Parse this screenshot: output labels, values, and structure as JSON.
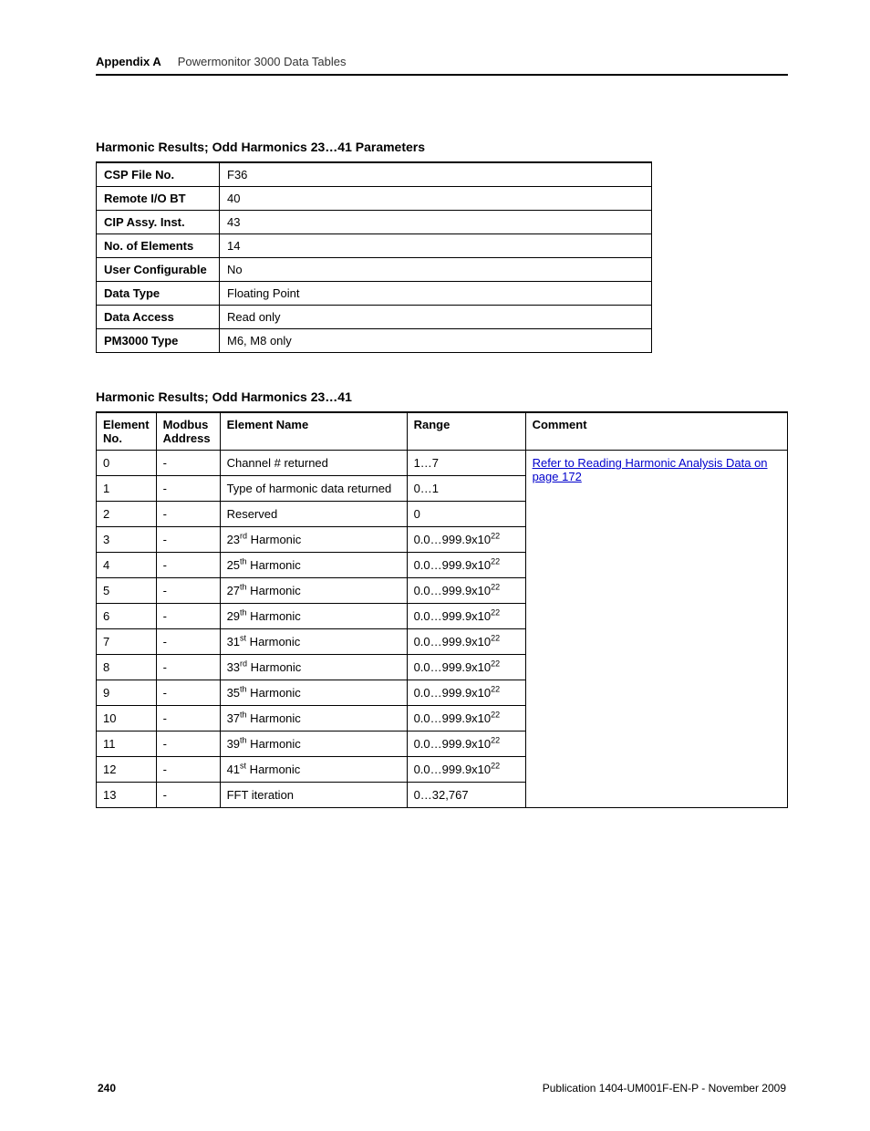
{
  "header": {
    "appendix_label": "Appendix A",
    "appendix_title": "Powermonitor 3000 Data Tables"
  },
  "params_table": {
    "title": "Harmonic Results; Odd Harmonics 23…41 Parameters",
    "rows": [
      {
        "label": "CSP File No.",
        "value": "F36"
      },
      {
        "label": "Remote I/O BT",
        "value": "40"
      },
      {
        "label": "CIP Assy. Inst.",
        "value": "43"
      },
      {
        "label": "No. of Elements",
        "value": "14"
      },
      {
        "label": "User Configurable",
        "value": "No"
      },
      {
        "label": "Data Type",
        "value": "Floating Point"
      },
      {
        "label": "Data Access",
        "value": "Read only"
      },
      {
        "label": "PM3000 Type",
        "value": "M6, M8 only"
      }
    ]
  },
  "elements_table": {
    "title": "Harmonic Results; Odd Harmonics 23…41",
    "headers": {
      "el_no": "Element No.",
      "modbus": "Modbus Address",
      "name": "Element Name",
      "range": "Range",
      "comment": "Comment"
    },
    "comment_link_text": "Refer to Reading Harmonic Analysis Data on page 172",
    "rows": [
      {
        "no": "0",
        "modbus": "-",
        "name_plain": "Channel # returned",
        "range_plain": "1…7"
      },
      {
        "no": "1",
        "modbus": "-",
        "name_plain": "Type of harmonic data returned",
        "range_plain": "0…1"
      },
      {
        "no": "2",
        "modbus": "-",
        "name_plain": "Reserved",
        "range_plain": "0"
      },
      {
        "no": "3",
        "modbus": "-",
        "harm_num": "23",
        "harm_suffix": "rd",
        "range_exp": true
      },
      {
        "no": "4",
        "modbus": "-",
        "harm_num": "25",
        "harm_suffix": "th",
        "range_exp": true
      },
      {
        "no": "5",
        "modbus": "-",
        "harm_num": "27",
        "harm_suffix": "th",
        "range_exp": true
      },
      {
        "no": "6",
        "modbus": "-",
        "harm_num": "29",
        "harm_suffix": "th",
        "range_exp": true
      },
      {
        "no": "7",
        "modbus": "-",
        "harm_num": "31",
        "harm_suffix": "st",
        "range_exp": true
      },
      {
        "no": "8",
        "modbus": "-",
        "harm_num": "33",
        "harm_suffix": "rd",
        "range_exp": true
      },
      {
        "no": "9",
        "modbus": "-",
        "harm_num": "35",
        "harm_suffix": "th",
        "range_exp": true
      },
      {
        "no": "10",
        "modbus": "-",
        "harm_num": "37",
        "harm_suffix": "th",
        "range_exp": true
      },
      {
        "no": "11",
        "modbus": "-",
        "harm_num": "39",
        "harm_suffix": "th",
        "range_exp": true
      },
      {
        "no": "12",
        "modbus": "-",
        "harm_num": "41",
        "harm_suffix": "st",
        "range_exp": true
      },
      {
        "no": "13",
        "modbus": "-",
        "name_plain": "FFT iteration",
        "range_plain": "0…32,767"
      }
    ]
  },
  "footer": {
    "page_num": "240",
    "publication": "Publication 1404-UM001F-EN-P - November 2009"
  }
}
